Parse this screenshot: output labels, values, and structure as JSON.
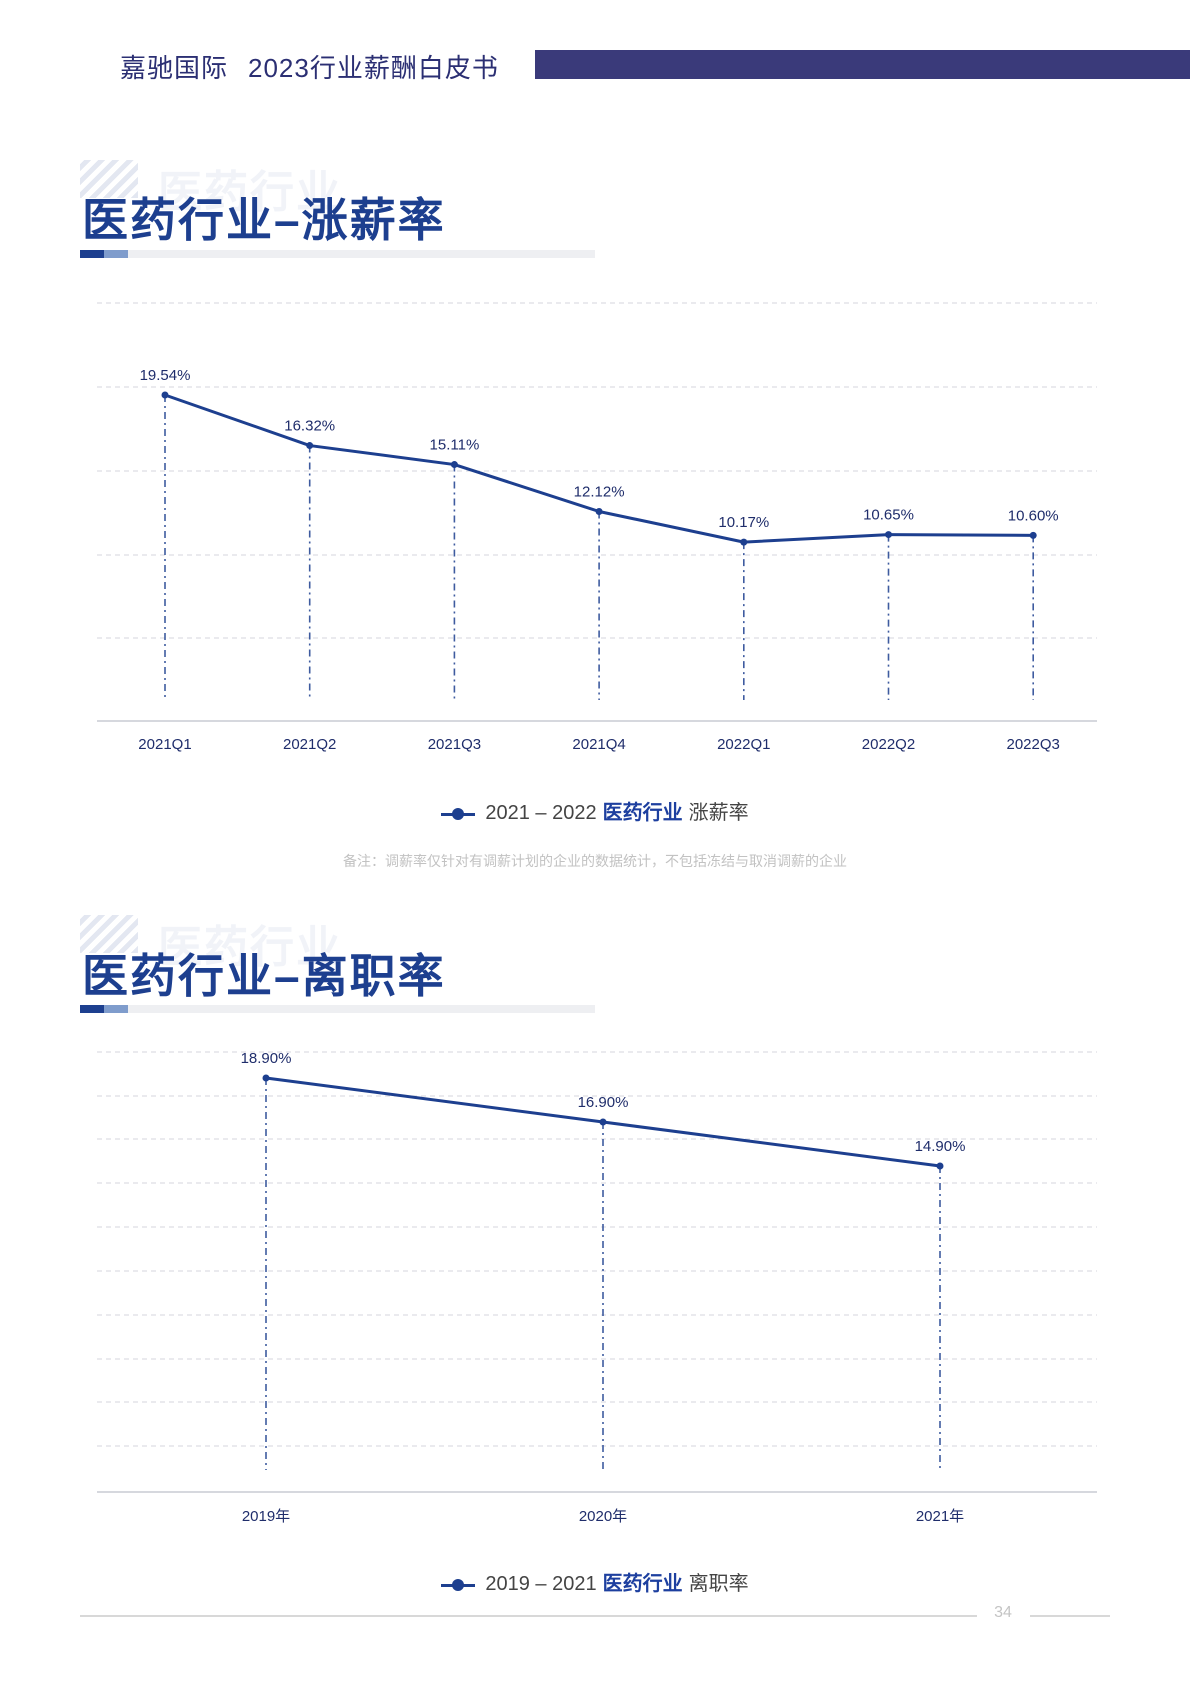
{
  "header": {
    "brand": "嘉驰国际",
    "doc_title": "2023行业薪酬白皮书"
  },
  "sections": [
    {
      "title": "医药行业–涨薪率",
      "ghost": "医药行业",
      "legend_prefix": "2021 – 2022",
      "legend_highlight": "医药行业",
      "legend_suffix": "涨薪率",
      "note": "备注：调薪率仅针对有调薪计划的企业的数据统计，不包括冻结与取消调薪的企业"
    },
    {
      "title": "医药行业–离职率",
      "ghost": "医药行业",
      "legend_prefix": "2019 – 2021",
      "legend_highlight": "医药行业",
      "legend_suffix": "离职率"
    }
  ],
  "chart_data": [
    {
      "type": "line",
      "categories": [
        "2021Q1",
        "2021Q2",
        "2021Q3",
        "2021Q4",
        "2022Q1",
        "2022Q2",
        "2022Q3"
      ],
      "series": [
        {
          "values": [
            19.54,
            16.32,
            15.11,
            12.12,
            10.17,
            10.65,
            10.6
          ],
          "labels": [
            "19.54%",
            "16.32%",
            "15.11%",
            "12.12%",
            "10.17%",
            "10.65%",
            "10.60%"
          ]
        }
      ],
      "grid": true,
      "legend_position": "bottom",
      "color": "#1d3f8f"
    },
    {
      "type": "line",
      "categories": [
        "2019年",
        "2020年",
        "2021年"
      ],
      "series": [
        {
          "values": [
            18.9,
            16.9,
            14.9
          ],
          "labels": [
            "18.90%",
            "16.90%",
            "14.90%"
          ]
        }
      ],
      "grid": true,
      "legend_position": "bottom",
      "color": "#1d3f8f"
    }
  ],
  "footer": {
    "page_number": "34"
  }
}
